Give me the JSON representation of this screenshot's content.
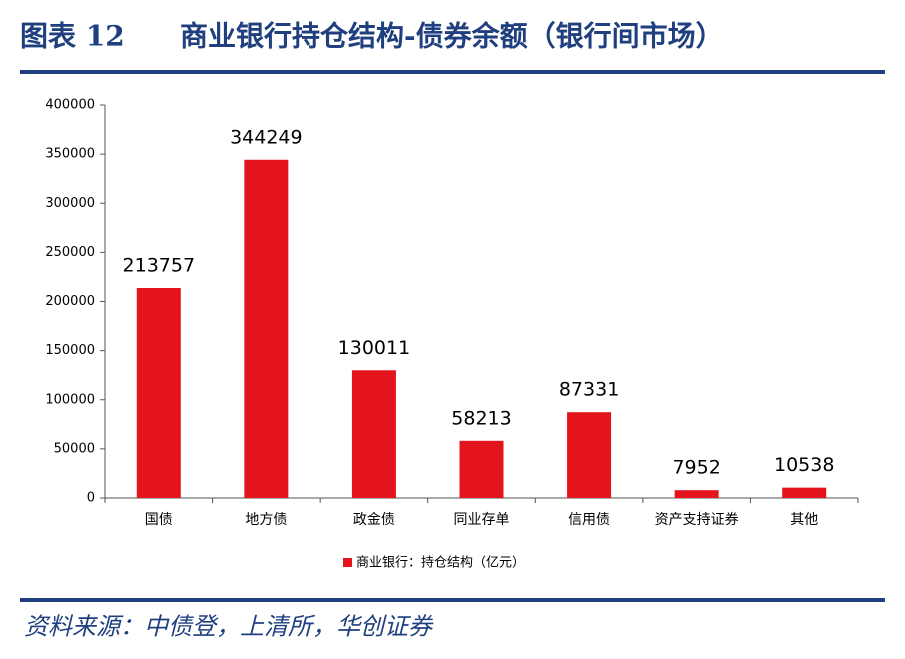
{
  "figure_label": "图表 12",
  "source": "资料来源：中债登，上清所，华创证券",
  "chart_data": {
    "type": "bar",
    "title": "商业银行持仓结构-债券余额（银行间市场）",
    "categories": [
      "国债",
      "地方债",
      "政金债",
      "同业存单",
      "信用债",
      "资产支持证券",
      "其他"
    ],
    "series": [
      {
        "name": "商业银行：持仓结构（亿元）",
        "color": "#e3141c",
        "values": [
          213757,
          344249,
          130011,
          58213,
          87331,
          7952,
          10538
        ]
      }
    ],
    "ylim": [
      0,
      400000
    ],
    "yticks": [
      0,
      50000,
      100000,
      150000,
      200000,
      250000,
      300000,
      350000,
      400000
    ],
    "legend": "bottom"
  }
}
